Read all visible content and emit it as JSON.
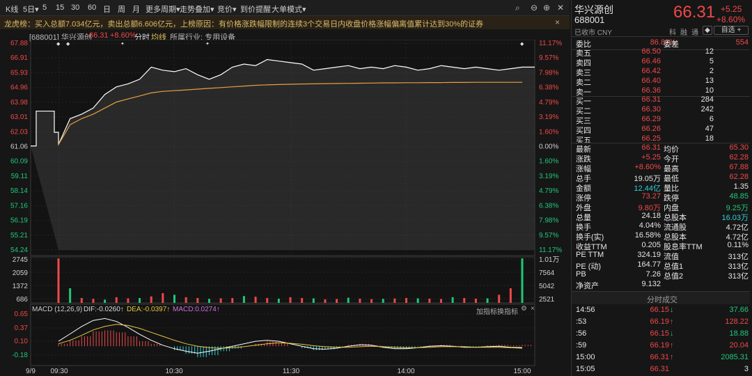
{
  "toolbar": {
    "items": [
      "K线",
      "5日▾",
      "5",
      "15",
      "30",
      "60",
      "日",
      "周",
      "月",
      "更多周期▾",
      "走势叠加▾",
      "竞价▾",
      "到价提醒",
      "大单模式▾"
    ]
  },
  "notice": {
    "text": "龙虎榜：买入总额7.034亿元，卖出总额6.606亿元，上榜原因：有价格涨跌幅限制的连续3个交易日内收盘价格涨幅偏离值累计达到30%的证券",
    "close": "×"
  },
  "infobar": {
    "code": "[688001] 华兴源创",
    "price": "66.31",
    "change": "+8.60%",
    "mode1": "分时",
    "mode2": "均线",
    "industry": "所属行业: 专用设备"
  },
  "chart_data": [
    {
      "type": "line",
      "title": "",
      "y_left_ticks": [
        "67.88",
        "66.91",
        "65.93",
        "64.96",
        "63.98",
        "63.01",
        "62.03",
        "61.06",
        "60.09",
        "59.11",
        "58.14",
        "57.16",
        "56.19",
        "55.21",
        "54.24"
      ],
      "y_right_ticks": [
        "11.17%",
        "9.57%",
        "7.98%",
        "6.38%",
        "4.79%",
        "3.19%",
        "1.60%",
        "0.00%",
        "1.60%",
        "3.19%",
        "4.79%",
        "6.38%",
        "7.98%",
        "9.57%",
        "11.17%"
      ],
      "x_ticks": [
        "9/9",
        "09:30",
        "10:30",
        "11:30",
        "14:00",
        "15:00"
      ],
      "ylim": [
        54.24,
        67.88
      ],
      "prev_close": 61.06,
      "series": [
        {
          "values": [
            61.2,
            62.9,
            63.2,
            63.6,
            64.5,
            65.0,
            65.2,
            65.5,
            66.3,
            66.1,
            66.0,
            66.2,
            65.8,
            65.5,
            65.8,
            66.3,
            66.5,
            66.4,
            66.8,
            66.7,
            66.6,
            66.5,
            66.1,
            66.2,
            66.3,
            66.4,
            66.2,
            66.3,
            66.2,
            66.4,
            66.3,
            66.1,
            66.2,
            66.4,
            66.3,
            66.2,
            66.3,
            66.2,
            66.1,
            66.2,
            66.3
          ]
        },
        {
          "values": [
            61.2,
            62.5,
            62.9,
            63.2,
            63.6,
            64.0,
            64.2,
            64.4,
            64.6,
            64.7,
            64.75,
            64.8,
            64.85,
            64.9,
            64.95,
            65.0,
            65.05,
            65.1,
            65.13,
            65.15,
            65.17,
            65.19,
            65.2,
            65.21,
            65.22,
            65.23,
            65.24,
            65.25,
            65.26,
            65.26,
            65.27,
            65.27,
            65.28,
            65.28,
            65.29,
            65.29,
            65.3,
            65.3,
            65.3,
            65.3,
            65.3
          ]
        }
      ]
    },
    {
      "type": "bar",
      "title": "",
      "y_left_ticks": [
        "2745",
        "2059",
        "1372",
        "686"
      ],
      "y_right_ticks": [
        "1.01万",
        "7564",
        "5042",
        "2521"
      ],
      "values": [
        2745,
        900,
        300,
        250,
        200,
        350,
        280,
        300,
        400,
        600,
        500,
        350,
        300,
        250,
        280,
        300,
        420,
        380,
        300,
        260,
        350,
        300,
        280,
        220,
        240,
        320,
        260,
        230,
        250,
        270,
        300,
        280,
        260,
        240,
        350,
        300,
        260,
        280,
        500,
        900,
        2745
      ]
    },
    {
      "type": "bar",
      "title": "MACD (12,26,9)",
      "labels": {
        "dif": "DIF:-0.0260↑",
        "dea": "DEA:-0.0397↑",
        "macd": "MACD:0.0274↑",
        "btn1": "加指标",
        "btn2": "换指标"
      },
      "y_ticks": [
        "0.65",
        "0.37",
        "0.10",
        "-0.18"
      ],
      "ylim": [
        -0.32,
        0.65
      ],
      "macd": [
        0.05,
        0.12,
        0.2,
        0.3,
        0.32,
        0.28,
        0.2,
        0.1,
        0.05,
        0.0,
        -0.08,
        -0.15,
        -0.22,
        -0.18,
        -0.1,
        -0.05,
        0.0,
        0.05,
        0.1,
        0.06,
        0.0,
        -0.04,
        -0.08,
        -0.06,
        -0.02,
        0.03,
        0.05,
        0.02,
        -0.03,
        -0.05,
        -0.04,
        -0.01,
        0.02,
        0.03,
        0.01,
        -0.02,
        -0.01,
        0.02,
        0.03,
        0.02,
        0.03
      ],
      "dif": [
        0.1,
        0.25,
        0.4,
        0.52,
        0.56,
        0.5,
        0.38,
        0.24,
        0.12,
        0.02,
        -0.05,
        -0.1,
        -0.14,
        -0.1,
        -0.05,
        0.0,
        0.05,
        0.1,
        0.12,
        0.1,
        0.05,
        0.0,
        -0.05,
        -0.06,
        -0.04,
        0.0,
        0.03,
        0.02,
        -0.02,
        -0.05,
        -0.05,
        -0.03,
        0.0,
        0.01,
        0.0,
        -0.02,
        -0.02,
        -0.01,
        0.0,
        -0.02,
        -0.026
      ],
      "dea": [
        0.05,
        0.12,
        0.22,
        0.33,
        0.4,
        0.44,
        0.42,
        0.36,
        0.28,
        0.2,
        0.12,
        0.05,
        0.0,
        -0.03,
        -0.04,
        -0.03,
        -0.01,
        0.02,
        0.05,
        0.07,
        0.06,
        0.04,
        0.01,
        -0.01,
        -0.02,
        -0.02,
        -0.01,
        0.0,
        -0.01,
        -0.02,
        -0.03,
        -0.03,
        -0.02,
        -0.01,
        -0.01,
        -0.01,
        -0.02,
        -0.02,
        -0.02,
        -0.03,
        -0.04
      ]
    }
  ],
  "right": {
    "name": "华兴源创",
    "code": "688001",
    "status": "已收市 CNY",
    "price": "66.31",
    "chg": "+5.25",
    "pct": "+8.60%",
    "tags": [
      "科",
      "融",
      "通"
    ],
    "watch": "自选 +",
    "weibi_label": "委比",
    "weibi": "86.87%",
    "weicha_label": "委差",
    "weicha": "554",
    "asks": [
      {
        "label": "卖五",
        "price": "66.50",
        "vol": "12"
      },
      {
        "label": "卖四",
        "price": "66.46",
        "vol": "5"
      },
      {
        "label": "卖三",
        "price": "66.42",
        "vol": "2"
      },
      {
        "label": "卖二",
        "price": "66.40",
        "vol": "13"
      },
      {
        "label": "卖一",
        "price": "66.36",
        "vol": "10"
      }
    ],
    "bids": [
      {
        "label": "买一",
        "price": "66.31",
        "vol": "284"
      },
      {
        "label": "买二",
        "price": "66.30",
        "vol": "242"
      },
      {
        "label": "买三",
        "price": "66.29",
        "vol": "6"
      },
      {
        "label": "买四",
        "price": "66.26",
        "vol": "47"
      },
      {
        "label": "买五",
        "price": "66.25",
        "vol": "18"
      }
    ],
    "stats": [
      {
        "l1": "最新",
        "v1": "66.31",
        "c1": "red",
        "l2": "均价",
        "v2": "65.30",
        "c2": "red"
      },
      {
        "l1": "涨跌",
        "v1": "+5.25",
        "c1": "red",
        "l2": "今开",
        "v2": "62.28",
        "c2": "red"
      },
      {
        "l1": "涨幅",
        "v1": "+8.60%",
        "c1": "red",
        "l2": "最高",
        "v2": "67.88",
        "c2": "red"
      },
      {
        "l1": "总手",
        "v1": "19.05万",
        "c1": "white",
        "l2": "最低",
        "v2": "62.28",
        "c2": "red"
      },
      {
        "l1": "金额",
        "v1": "12.44亿",
        "c1": "cyan",
        "l2": "量比",
        "v2": "1.35",
        "c2": "white"
      },
      {
        "l1": "涨停",
        "v1": "73.27",
        "c1": "red",
        "l2": "跌停",
        "v2": "48.85",
        "c2": "green"
      },
      {
        "l1": "外盘",
        "v1": "9.80万",
        "c1": "red",
        "l2": "内盘",
        "v2": "9.25万",
        "c2": "green"
      },
      {
        "l1": "总量",
        "v1": "24.18",
        "c1": "white",
        "l2": "总股本",
        "v2": "16.03万",
        "c2": "cyan"
      },
      {
        "l1": "换手",
        "v1": "4.04%",
        "c1": "white",
        "l2": "流通股",
        "v2": "4.72亿",
        "c2": "white"
      },
      {
        "l1": "换手(实)",
        "v1": "16.58%",
        "c1": "white",
        "l2": "总股本",
        "v2": "4.72亿",
        "c2": "white"
      },
      {
        "l1": "收益TTM",
        "v1": "0.205",
        "c1": "white",
        "l2": "股息率TTM",
        "v2": "0.11%",
        "c2": "white"
      },
      {
        "l1": "PE TTM",
        "v1": "324.19",
        "c1": "white",
        "l2": "流值",
        "v2": "313亿",
        "c2": "white"
      },
      {
        "l1": "PE (动)",
        "v1": "164.77",
        "c1": "white",
        "l2": "总值1",
        "v2": "313亿",
        "c2": "white"
      },
      {
        "l1": "PB",
        "v1": "7.26",
        "c1": "white",
        "l2": "总值2",
        "v2": "313亿",
        "c2": "white"
      },
      {
        "l1": "净资产",
        "v1": "9.132",
        "c1": "white",
        "l2": "",
        "v2": "",
        "c2": "white"
      }
    ],
    "ticks_title": "分时成交",
    "ticks": [
      {
        "t": "14:56",
        "p": "66.15",
        "d": "↓",
        "dc": "green",
        "v": "37.66",
        "vc": "green"
      },
      {
        "t": ":53",
        "p": "66.19",
        "d": "↑",
        "dc": "red",
        "v": "128.22",
        "vc": "red"
      },
      {
        "t": ":56",
        "p": "66.15",
        "d": "↓",
        "dc": "green",
        "v": "18.88",
        "vc": "green"
      },
      {
        "t": ":59",
        "p": "66.19",
        "d": "↑",
        "dc": "red",
        "v": "20.04",
        "vc": "red"
      },
      {
        "t": "15:00",
        "p": "66.31",
        "d": "↑",
        "dc": "red",
        "v": "2085.31",
        "vc": "green"
      },
      {
        "t": "15:05",
        "p": "66.31",
        "d": "",
        "dc": "red",
        "v": "3",
        "vc": "white"
      }
    ]
  }
}
